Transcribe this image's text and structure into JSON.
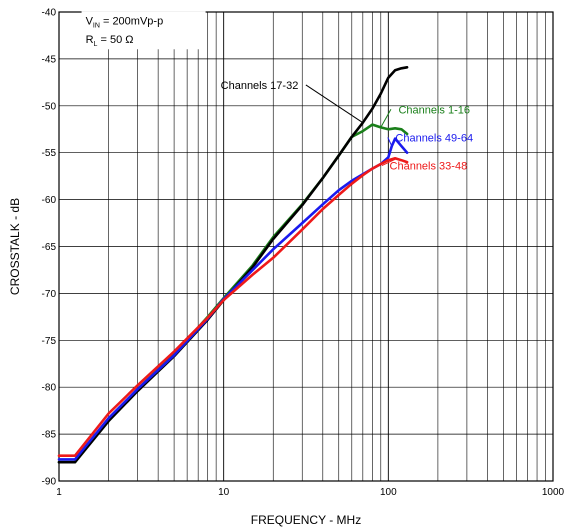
{
  "chart_data": {
    "type": "line",
    "title": "",
    "xlabel": "FREQUENCY - MHz",
    "ylabel": "CROSSTALK - dB",
    "xscale": "log",
    "xlim": [
      1,
      1000
    ],
    "ylim": [
      -90,
      -40
    ],
    "grid": true,
    "x_ticks": [
      1,
      10,
      100,
      1000
    ],
    "x_tick_labels": [
      "1",
      "10",
      "100",
      "1000"
    ],
    "y_ticks": [
      -40,
      -45,
      -50,
      -55,
      -60,
      -65,
      -70,
      -75,
      -80,
      -85,
      -90
    ],
    "y_tick_labels": [
      "-40",
      "-45",
      "-50",
      "-55",
      "-60",
      "-65",
      "-70",
      "-75",
      "-80",
      "-85",
      "-90"
    ],
    "conditions": {
      "line1_main": "V",
      "line1_sub": "IN",
      "line1_rest": " = 200mVp-p",
      "line2_main": "R",
      "line2_sub": "L",
      "line2_rest": " = 50 Ω"
    },
    "series": [
      {
        "name": "Channels 1-16",
        "color": "#1a7f1a",
        "x": [
          1,
          1.25,
          2,
          3,
          5,
          8,
          10,
          15,
          20,
          30,
          40,
          50,
          60,
          70,
          80,
          90,
          100,
          110,
          120,
          130
        ],
        "y": [
          -88,
          -88,
          -83.5,
          -80.2,
          -76.5,
          -72.5,
          -70.5,
          -67,
          -64,
          -60.5,
          -57.7,
          -55.3,
          -53.3,
          -52.7,
          -52,
          -52.3,
          -52.5,
          -52.4,
          -52.5,
          -53
        ]
      },
      {
        "name": "Channels 17-32",
        "color": "#000000",
        "x": [
          1,
          1.25,
          2,
          3,
          5,
          8,
          10,
          15,
          20,
          30,
          40,
          50,
          60,
          70,
          80,
          90,
          100,
          110,
          120,
          130
        ],
        "y": [
          -88,
          -88,
          -83.6,
          -80.4,
          -76.7,
          -72.8,
          -70.7,
          -67.2,
          -64.2,
          -60.6,
          -57.7,
          -55.3,
          -53.3,
          -51.8,
          -50.3,
          -48.7,
          -47,
          -46.2,
          -46,
          -45.9
        ]
      },
      {
        "name": "Channels 49-64",
        "color": "#1a1aee",
        "x": [
          1,
          1.25,
          2,
          3,
          5,
          8,
          10,
          15,
          20,
          30,
          40,
          50,
          60,
          70,
          80,
          90,
          100,
          105,
          110,
          120,
          130
        ],
        "y": [
          -87.7,
          -87.7,
          -83.3,
          -80.2,
          -76.6,
          -72.7,
          -70.6,
          -67.5,
          -65.3,
          -62.5,
          -60.5,
          -59,
          -58,
          -57.3,
          -56.7,
          -56.2,
          -55.5,
          -54.3,
          -53.5,
          -54.3,
          -55
        ]
      },
      {
        "name": "Channels 33-48",
        "color": "#ee1a1a",
        "x": [
          1,
          1.25,
          2,
          3,
          5,
          8,
          10,
          15,
          20,
          30,
          40,
          50,
          60,
          70,
          80,
          90,
          100,
          110,
          120,
          130
        ],
        "y": [
          -87.3,
          -87.3,
          -82.8,
          -79.8,
          -76.2,
          -72.6,
          -70.7,
          -68,
          -66.2,
          -63.2,
          -61,
          -59.5,
          -58.3,
          -57.4,
          -56.7,
          -56.2,
          -55.8,
          -55.6,
          -55.8,
          -56
        ]
      }
    ],
    "annotations": [
      {
        "text": "Channels 17-32",
        "series": 1,
        "at_x": 70,
        "label_x": 16.5,
        "label_y": -48.2,
        "color": "#000000"
      },
      {
        "text": "Channels 1-16",
        "series": 0,
        "at_x": 90,
        "label_x": 190,
        "label_y": -50.8,
        "color": "#1a7f1a"
      },
      {
        "text": "Channels 49-64",
        "series": 2,
        "at_x": 105,
        "label_x": 190,
        "label_y": -53.8,
        "color": "#1a1aee"
      },
      {
        "text": "Channels 33-48",
        "series": 3,
        "at_x": 112,
        "label_x": 175,
        "label_y": -56.8,
        "color": "#ee1a1a"
      }
    ]
  }
}
